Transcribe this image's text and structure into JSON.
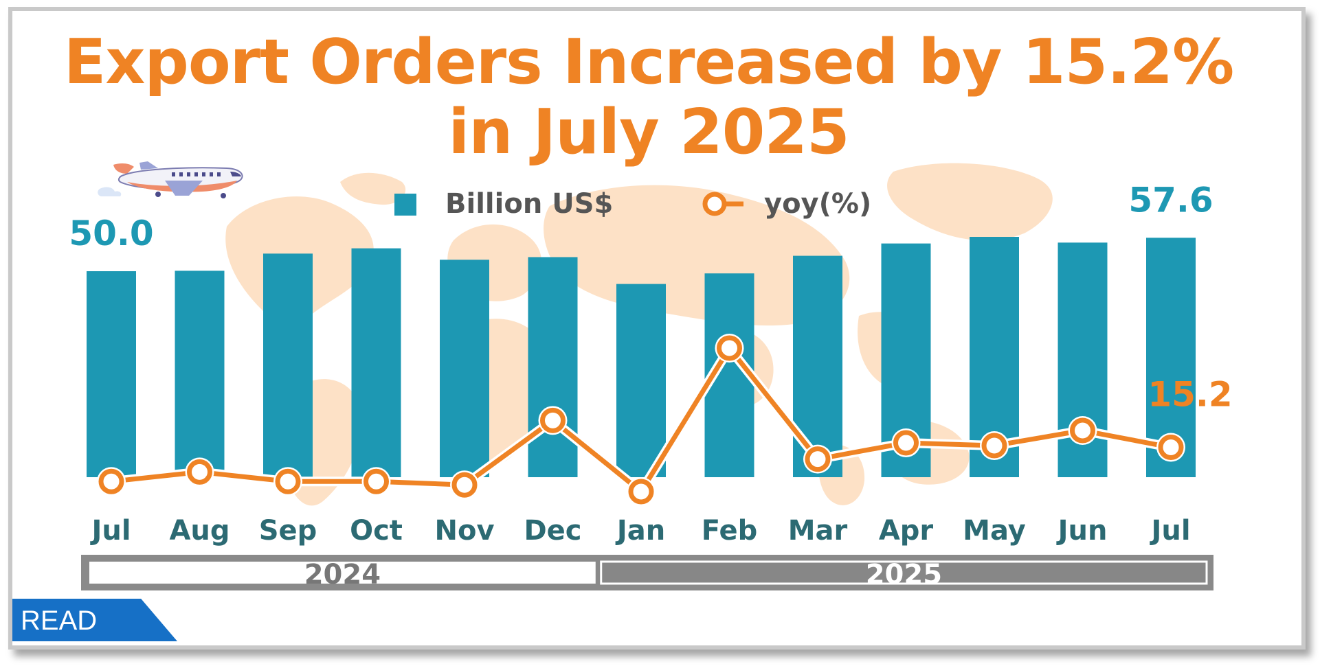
{
  "title_line1": "Export Orders Increased by 15.2%",
  "title_line2": "in July 2025",
  "read_label": "READ",
  "colors": {
    "bar": "#1d98b3",
    "line": "#ef8324",
    "year_2025_fill": "#878787",
    "year_2024_fill": "#ffffff",
    "map": "#fde1c6",
    "title": "#ef8324"
  },
  "icons": [
    "airplane-icon",
    "world-map-background"
  ],
  "chart_data": {
    "type": "bar",
    "title": "Export Orders Increased by 15.2% in July 2025",
    "categories": [
      "Jul",
      "Aug",
      "Sep",
      "Oct",
      "Nov",
      "Dec",
      "Jan",
      "Feb",
      "Mar",
      "Apr",
      "May",
      "Jun",
      "Jul"
    ],
    "years": [
      {
        "label": "2024",
        "months": 6
      },
      {
        "label": "2025",
        "months": 7
      }
    ],
    "series": [
      {
        "name": "Billion US$",
        "type": "bar",
        "values": [
          50.0,
          50.1,
          54.0,
          55.2,
          52.6,
          53.2,
          47.1,
          49.5,
          53.5,
          56.3,
          57.8,
          56.5,
          57.6
        ]
      },
      {
        "name": "yoy(%)",
        "type": "line",
        "values": [
          9.1,
          10.8,
          9.1,
          9.1,
          8.5,
          20.0,
          7.3,
          32.9,
          13.1,
          16.0,
          15.5,
          18.2,
          15.2
        ]
      }
    ],
    "data_labels": [
      {
        "series": "Billion US$",
        "index": 0,
        "text": "50.0"
      },
      {
        "series": "Billion US$",
        "index": 12,
        "text": "57.6"
      },
      {
        "series": "yoy(%)",
        "index": 12,
        "text": "15.2"
      }
    ],
    "bar_axis_range": [
      0,
      60
    ],
    "line_axis_range": [
      5,
      40
    ],
    "legend": "top-center",
    "grid": false
  }
}
